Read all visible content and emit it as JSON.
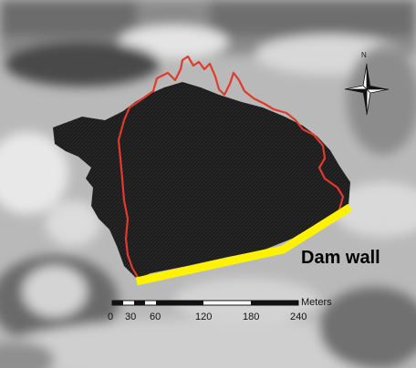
{
  "map": {
    "feature_label": "Dam wall",
    "north_letter": "N",
    "scale_bar": {
      "unit": "Meters",
      "ticks": [
        "0",
        "30",
        "60",
        "120",
        "180",
        "240"
      ]
    },
    "colors": {
      "reservoir_boundary": "#e03a2a",
      "dam_wall": "#fff200",
      "reservoir_fill": "#1e1e1e"
    }
  }
}
